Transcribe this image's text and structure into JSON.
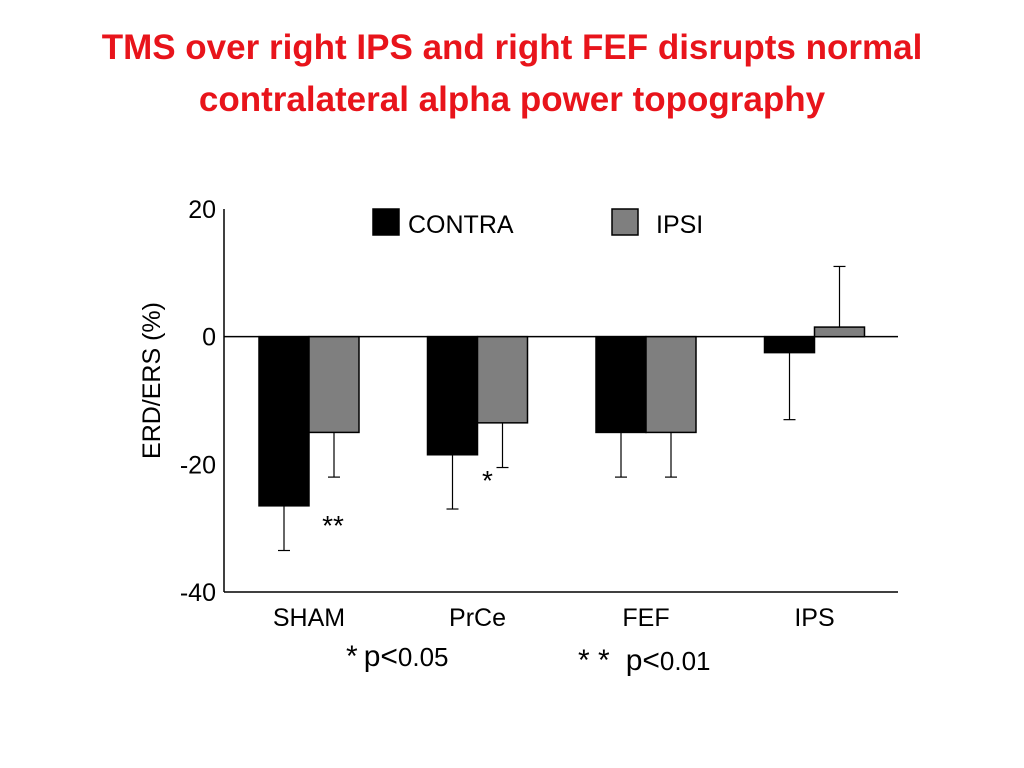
{
  "slide": {
    "title_line1": "TMS over right IPS and right FEF disrupts normal",
    "title_line2": "contralateral alpha power topography",
    "title_color": "#e8141b"
  },
  "notes": {
    "note1_star": "*",
    "note1_text": "p<",
    "note1_value": "0.05",
    "note2_star": "* *",
    "note2_text": "p<",
    "note2_value": "0.01"
  },
  "chart_data": {
    "type": "bar",
    "ylabel": "ERD/ERS (%)",
    "xlabel": "",
    "ylim": [
      -40,
      20
    ],
    "yticks": [
      20,
      0,
      -20,
      -40
    ],
    "categories": [
      "SHAM",
      "PrCe",
      "FEF",
      "IPS"
    ],
    "legend_position": "top",
    "series": [
      {
        "name": "CONTRA",
        "color": "#000000",
        "values": [
          -26.5,
          -18.5,
          -15,
          -2.5
        ],
        "errors": [
          7,
          8.5,
          7,
          10.5
        ]
      },
      {
        "name": "IPSI",
        "color": "#7f7f7f",
        "values": [
          -15,
          -13.5,
          -15,
          1.5
        ],
        "errors": [
          7,
          7,
          7,
          9.5
        ]
      }
    ],
    "significance": [
      "**",
      "*",
      "",
      ""
    ]
  }
}
